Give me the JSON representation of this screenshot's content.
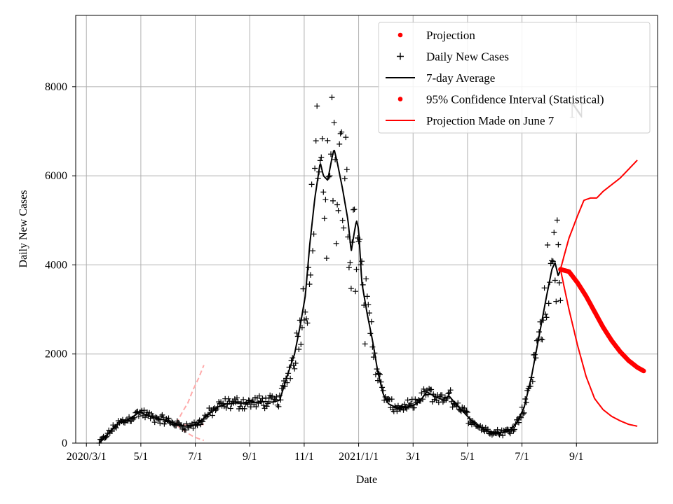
{
  "colors": {
    "projection": "#ff0000",
    "projection_faint": "#ffaaaa",
    "cases": "#000000",
    "average": "#000000",
    "grid": "#b0b0b0",
    "watermark": "#bbbbbb"
  },
  "watermark": "N",
  "chart_data": {
    "type": "line",
    "title": "",
    "xlabel": "Date",
    "ylabel": "Daily New Cases",
    "xlim_days": [
      -10,
      535
    ],
    "ylim": [
      0,
      9600
    ],
    "yticks": [
      0,
      2000,
      4000,
      6000,
      8000
    ],
    "ytick_labels": [
      "0",
      "2000",
      "4000",
      "6000",
      "8000"
    ],
    "xticks": [
      {
        "day": 0,
        "label": "2020/3/1"
      },
      {
        "day": 51,
        "label": "5/1"
      },
      {
        "day": 102,
        "label": "7/1"
      },
      {
        "day": 153,
        "label": "9/1"
      },
      {
        "day": 204,
        "label": "11/1"
      },
      {
        "day": 255,
        "label": "2021/1/1"
      },
      {
        "day": 306,
        "label": "3/1"
      },
      {
        "day": 357,
        "label": "5/1"
      },
      {
        "day": 408,
        "label": "7/1"
      },
      {
        "day": 459,
        "label": "9/1"
      }
    ],
    "grid": true,
    "legend_position": "top-right",
    "legend": [
      {
        "label": "Projection",
        "kind": "dot",
        "color": "#ff0000"
      },
      {
        "label": "Daily New Cases",
        "kind": "plus",
        "color": "#000000"
      },
      {
        "label": "7-day Average",
        "kind": "line",
        "color": "#000000"
      },
      {
        "label": "95% Confidence Interval (Statistical)",
        "kind": "dot",
        "color": "#ff0000"
      },
      {
        "label": "Projection Made on June 7",
        "kind": "line",
        "color": "#ff0000"
      }
    ],
    "average_curve": [
      [
        12,
        0
      ],
      [
        18,
        150
      ],
      [
        24,
        300
      ],
      [
        30,
        450
      ],
      [
        37,
        500
      ],
      [
        44,
        600
      ],
      [
        50,
        700
      ],
      [
        57,
        620
      ],
      [
        64,
        560
      ],
      [
        71,
        530
      ],
      [
        78,
        480
      ],
      [
        85,
        420
      ],
      [
        92,
        380
      ],
      [
        98,
        380
      ],
      [
        104,
        420
      ],
      [
        110,
        560
      ],
      [
        117,
        700
      ],
      [
        124,
        820
      ],
      [
        131,
        880
      ],
      [
        138,
        900
      ],
      [
        145,
        900
      ],
      [
        153,
        900
      ],
      [
        160,
        920
      ],
      [
        167,
        930
      ],
      [
        174,
        920
      ],
      [
        181,
        960
      ],
      [
        188,
        1500
      ],
      [
        195,
        2000
      ],
      [
        200,
        2600
      ],
      [
        205,
        3300
      ],
      [
        209,
        4400
      ],
      [
        214,
        5500
      ],
      [
        219,
        6300
      ],
      [
        222,
        6000
      ],
      [
        226,
        5900
      ],
      [
        230,
        6400
      ],
      [
        232,
        6600
      ],
      [
        235,
        6300
      ],
      [
        240,
        5700
      ],
      [
        245,
        5000
      ],
      [
        248,
        4300
      ],
      [
        250,
        4600
      ],
      [
        253,
        5000
      ],
      [
        255,
        4800
      ],
      [
        258,
        3600
      ],
      [
        263,
        2900
      ],
      [
        268,
        2300
      ],
      [
        273,
        1600
      ],
      [
        278,
        1100
      ],
      [
        283,
        880
      ],
      [
        290,
        800
      ],
      [
        297,
        800
      ],
      [
        305,
        830
      ],
      [
        312,
        930
      ],
      [
        319,
        1150
      ],
      [
        326,
        1050
      ],
      [
        333,
        980
      ],
      [
        340,
        1050
      ],
      [
        347,
        850
      ],
      [
        354,
        680
      ],
      [
        361,
        500
      ],
      [
        368,
        380
      ],
      [
        375,
        280
      ],
      [
        382,
        240
      ],
      [
        389,
        240
      ],
      [
        396,
        280
      ],
      [
        403,
        450
      ],
      [
        410,
        800
      ],
      [
        417,
        1500
      ],
      [
        424,
        2400
      ],
      [
        431,
        3300
      ],
      [
        436,
        3900
      ],
      [
        439,
        4050
      ],
      [
        442,
        3750
      ],
      [
        444,
        3900
      ]
    ],
    "projection_june7": {
      "center": [
        [
          84,
          430
        ],
        [
          90,
          410
        ],
        [
          95,
          400
        ],
        [
          100,
          400
        ],
        [
          105,
          410
        ],
        [
          110,
          420
        ]
      ],
      "upper": [
        [
          84,
          440
        ],
        [
          90,
          700
        ],
        [
          95,
          900
        ],
        [
          100,
          1200
        ],
        [
          105,
          1450
        ],
        [
          110,
          1750
        ]
      ],
      "lower": [
        [
          84,
          410
        ],
        [
          90,
          300
        ],
        [
          95,
          220
        ],
        [
          100,
          150
        ],
        [
          105,
          100
        ],
        [
          110,
          60
        ]
      ]
    },
    "projection_current": {
      "center": [
        [
          444,
          3900
        ],
        [
          452,
          3850
        ],
        [
          460,
          3600
        ],
        [
          468,
          3300
        ],
        [
          476,
          2950
        ],
        [
          484,
          2600
        ],
        [
          492,
          2300
        ],
        [
          500,
          2050
        ],
        [
          508,
          1850
        ],
        [
          516,
          1700
        ],
        [
          522,
          1620
        ]
      ],
      "upper": [
        [
          444,
          3900
        ],
        [
          452,
          4600
        ],
        [
          460,
          5100
        ],
        [
          466,
          5450
        ],
        [
          472,
          5500
        ],
        [
          478,
          5500
        ],
        [
          484,
          5650
        ],
        [
          492,
          5800
        ],
        [
          500,
          5950
        ],
        [
          508,
          6150
        ],
        [
          516,
          6350
        ]
      ],
      "lower": [
        [
          444,
          3900
        ],
        [
          452,
          3000
        ],
        [
          460,
          2200
        ],
        [
          468,
          1500
        ],
        [
          476,
          1000
        ],
        [
          484,
          750
        ],
        [
          492,
          600
        ],
        [
          500,
          500
        ],
        [
          508,
          420
        ],
        [
          516,
          380
        ]
      ]
    }
  }
}
